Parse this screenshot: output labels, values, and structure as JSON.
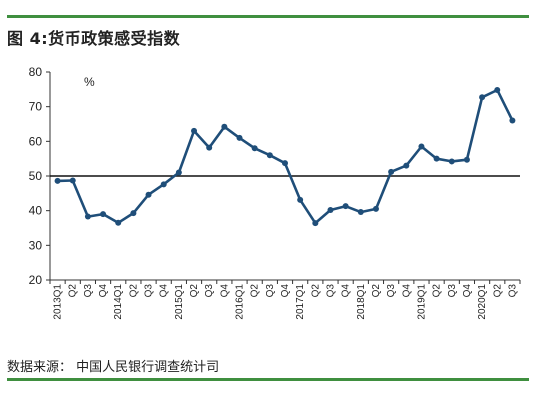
{
  "figure": {
    "title": "图 4:货币政策感受指数",
    "source": "数据来源：  中国人民银行调查统计司"
  },
  "chart_data": {
    "type": "line",
    "unit": "%",
    "ylim": [
      20,
      80
    ],
    "yticks": [
      20,
      30,
      40,
      50,
      60,
      70,
      80
    ],
    "reference_line": 50,
    "grid": false,
    "categories": [
      "2013Q1",
      "Q2",
      "Q3",
      "Q4",
      "2014Q1",
      "Q2",
      "Q3",
      "Q4",
      "2015Q1",
      "Q2",
      "Q3",
      "Q4",
      "2016Q1",
      "Q2",
      "Q3",
      "Q4",
      "2017Q1",
      "Q2",
      "Q3",
      "Q4",
      "2018Q1",
      "Q2",
      "Q3",
      "Q4",
      "2019Q1",
      "Q2",
      "Q3",
      "Q4",
      "2020Q1",
      "Q2",
      "Q3"
    ],
    "series": [
      {
        "color": "#1f4e79",
        "values": [
          48.6,
          48.7,
          38.3,
          39.0,
          36.5,
          39.3,
          44.6,
          47.6,
          51.0,
          63.0,
          58.2,
          64.2,
          61.0,
          58.0,
          56.0,
          53.7,
          43.1,
          36.4,
          40.2,
          41.3,
          39.6,
          40.5,
          51.2,
          53.0,
          58.5,
          55.0,
          54.2,
          54.7,
          72.7,
          74.8,
          66.0
        ]
      }
    ]
  }
}
